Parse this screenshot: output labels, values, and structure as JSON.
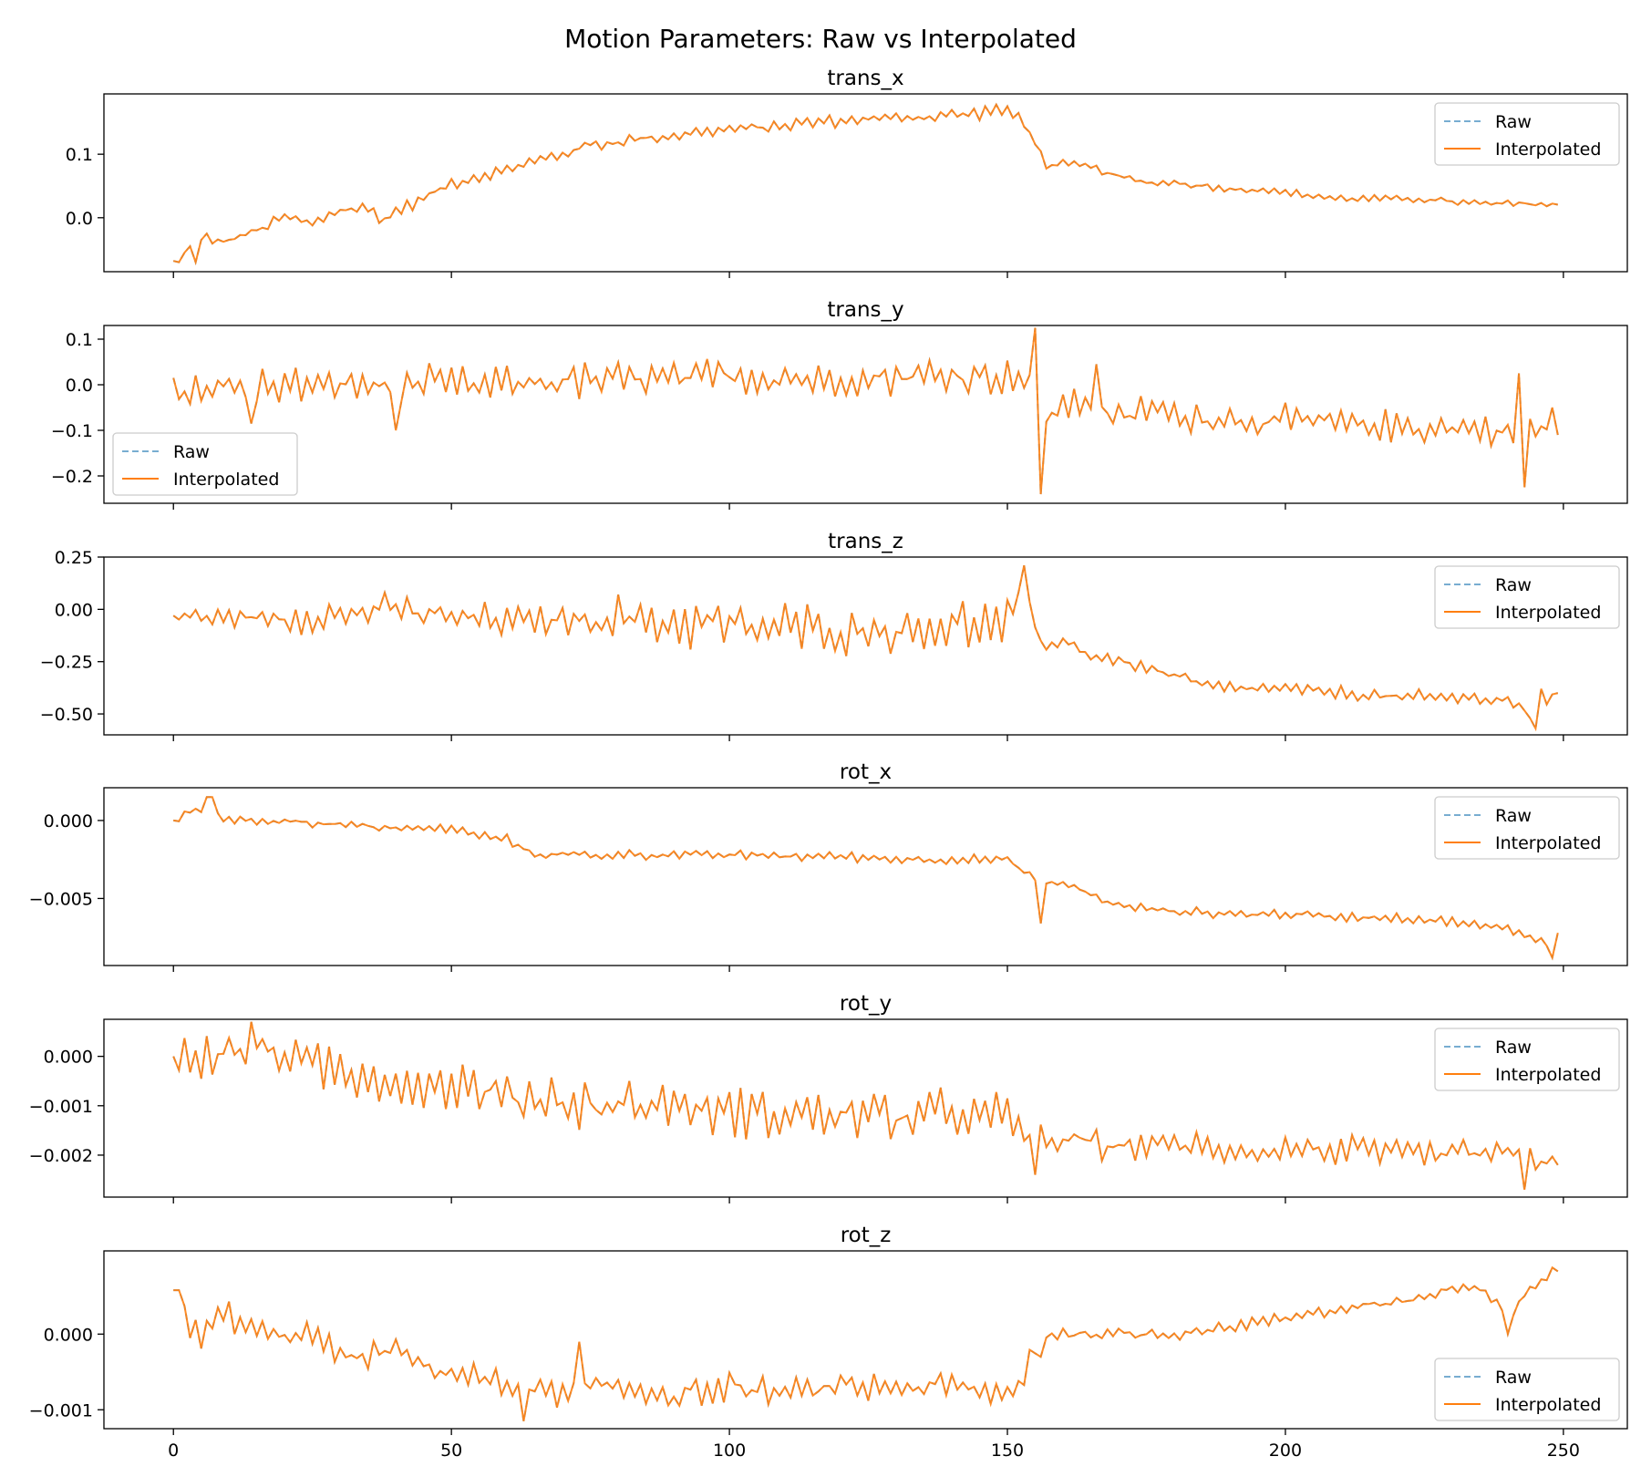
{
  "chart_data": {
    "type": "line",
    "suptitle": "Motion Parameters: Raw vs Interpolated",
    "colors": {
      "raw": "#1f77b4",
      "interpolated": "#ff7f0e"
    },
    "series_names": [
      "Raw",
      "Interpolated"
    ],
    "shared_x": {
      "xlim": [
        -12.5,
        261.5
      ],
      "ticks": [
        0,
        50,
        100,
        150,
        200,
        250
      ],
      "tick_labels": [
        "0",
        "50",
        "100",
        "150",
        "200",
        "250"
      ],
      "n_points": 250
    },
    "panels": [
      {
        "title": "trans_x",
        "ylim": [
          -0.085,
          0.195
        ],
        "yticks": [
          0.0,
          0.1
        ],
        "ytick_labels": [
          "0.0",
          "0.1"
        ],
        "legend_loc": "upper-right",
        "knots": [
          [
            0,
            -0.068
          ],
          [
            5,
            -0.04
          ],
          [
            10,
            -0.035
          ],
          [
            15,
            -0.02
          ],
          [
            20,
            0.0
          ],
          [
            25,
            -0.01
          ],
          [
            30,
            0.012
          ],
          [
            35,
            0.015
          ],
          [
            38,
            -0.005
          ],
          [
            40,
            0.01
          ],
          [
            45,
            0.03
          ],
          [
            50,
            0.055
          ],
          [
            55,
            0.065
          ],
          [
            60,
            0.075
          ],
          [
            65,
            0.09
          ],
          [
            70,
            0.1
          ],
          [
            75,
            0.115
          ],
          [
            80,
            0.12
          ],
          [
            85,
            0.125
          ],
          [
            90,
            0.13
          ],
          [
            95,
            0.135
          ],
          [
            100,
            0.14
          ],
          [
            105,
            0.142
          ],
          [
            110,
            0.145
          ],
          [
            115,
            0.15
          ],
          [
            120,
            0.152
          ],
          [
            125,
            0.155
          ],
          [
            130,
            0.158
          ],
          [
            135,
            0.16
          ],
          [
            140,
            0.162
          ],
          [
            145,
            0.165
          ],
          [
            148,
            0.17
          ],
          [
            152,
            0.16
          ],
          [
            155,
            0.12
          ],
          [
            157,
            0.08
          ],
          [
            160,
            0.085
          ],
          [
            165,
            0.08
          ],
          [
            170,
            0.065
          ],
          [
            175,
            0.055
          ],
          [
            180,
            0.055
          ],
          [
            185,
            0.05
          ],
          [
            190,
            0.045
          ],
          [
            195,
            0.045
          ],
          [
            200,
            0.04
          ],
          [
            205,
            0.035
          ],
          [
            210,
            0.03
          ],
          [
            215,
            0.03
          ],
          [
            220,
            0.03
          ],
          [
            225,
            0.03
          ],
          [
            230,
            0.025
          ],
          [
            235,
            0.022
          ],
          [
            240,
            0.022
          ],
          [
            245,
            0.022
          ],
          [
            249,
            0.02
          ]
        ],
        "noise": [
          [
            0,
            155,
            0.012
          ],
          [
            155,
            250,
            0.007
          ]
        ],
        "spikes": [
          [
            0,
            -0.068
          ],
          [
            1,
            -0.07
          ],
          [
            2,
            -0.055
          ],
          [
            3,
            -0.045
          ],
          [
            4,
            -0.07
          ],
          [
            5,
            -0.035
          ],
          [
            6,
            -0.025
          ]
        ]
      },
      {
        "title": "trans_y",
        "ylim": [
          -0.26,
          0.13
        ],
        "yticks": [
          -0.2,
          -0.1,
          0.0,
          0.1
        ],
        "ytick_labels": [
          "−0.2",
          "−0.1",
          "0.0",
          "0.1"
        ],
        "legend_loc": "lower-left",
        "knots": [
          [
            0,
            -0.01
          ],
          [
            20,
            0.0
          ],
          [
            40,
            0.0
          ],
          [
            60,
            0.0
          ],
          [
            80,
            0.01
          ],
          [
            100,
            0.02
          ],
          [
            120,
            0.01
          ],
          [
            140,
            0.02
          ],
          [
            150,
            0.02
          ],
          [
            155,
            0.0
          ],
          [
            157,
            -0.07
          ],
          [
            160,
            -0.05
          ],
          [
            165,
            -0.03
          ],
          [
            170,
            -0.08
          ],
          [
            175,
            -0.05
          ],
          [
            180,
            -0.07
          ],
          [
            200,
            -0.08
          ],
          [
            220,
            -0.09
          ],
          [
            240,
            -0.1
          ],
          [
            249,
            -0.1
          ]
        ],
        "noise": [
          [
            0,
            155,
            0.048
          ],
          [
            155,
            250,
            0.042
          ]
        ],
        "spikes": [
          [
            0,
            0.015
          ],
          [
            14,
            -0.085
          ],
          [
            40,
            -0.1
          ],
          [
            155,
            0.125
          ],
          [
            156,
            -0.24
          ],
          [
            166,
            0.045
          ],
          [
            242,
            0.025
          ],
          [
            243,
            -0.225
          ],
          [
            248,
            -0.05
          ],
          [
            249,
            -0.11
          ]
        ]
      },
      {
        "title": "trans_z",
        "ylim": [
          -0.6,
          0.25
        ],
        "yticks": [
          -0.5,
          -0.25,
          0.0,
          0.25
        ],
        "ytick_labels": [
          "−0.50",
          "−0.25",
          "0.00",
          "0.25"
        ],
        "legend_loc": "upper-right",
        "knots": [
          [
            0,
            -0.03
          ],
          [
            10,
            -0.04
          ],
          [
            20,
            -0.04
          ],
          [
            30,
            -0.03
          ],
          [
            40,
            0.0
          ],
          [
            50,
            -0.04
          ],
          [
            60,
            -0.05
          ],
          [
            70,
            -0.05
          ],
          [
            80,
            -0.05
          ],
          [
            90,
            -0.06
          ],
          [
            100,
            -0.08
          ],
          [
            110,
            -0.09
          ],
          [
            120,
            -0.1
          ],
          [
            130,
            -0.1
          ],
          [
            140,
            -0.08
          ],
          [
            150,
            -0.08
          ],
          [
            152,
            0.05
          ],
          [
            154,
            0.0
          ],
          [
            156,
            -0.17
          ],
          [
            160,
            -0.15
          ],
          [
            165,
            -0.22
          ],
          [
            170,
            -0.25
          ],
          [
            175,
            -0.28
          ],
          [
            180,
            -0.32
          ],
          [
            185,
            -0.36
          ],
          [
            190,
            -0.38
          ],
          [
            200,
            -0.38
          ],
          [
            210,
            -0.4
          ],
          [
            220,
            -0.42
          ],
          [
            230,
            -0.42
          ],
          [
            240,
            -0.43
          ],
          [
            245,
            -0.5
          ],
          [
            249,
            -0.4
          ]
        ],
        "noise": [
          [
            0,
            20,
            0.05
          ],
          [
            20,
            80,
            0.09
          ],
          [
            80,
            152,
            0.14
          ],
          [
            152,
            250,
            0.04
          ]
        ],
        "spikes": [
          [
            0,
            -0.03
          ],
          [
            153,
            0.21
          ],
          [
            244,
            -0.52
          ],
          [
            245,
            -0.57
          ],
          [
            246,
            -0.38
          ],
          [
            249,
            -0.4
          ]
        ]
      },
      {
        "title": "rot_x",
        "ylim": [
          -0.0093,
          0.0021
        ],
        "yticks": [
          -0.005,
          0.0
        ],
        "ytick_labels": [
          "−0.005",
          "0.000"
        ],
        "legend_loc": "upper-right",
        "knots": [
          [
            0,
            0.0
          ],
          [
            5,
            0.0008
          ],
          [
            10,
            0.0
          ],
          [
            20,
            0.0
          ],
          [
            30,
            -0.0003
          ],
          [
            40,
            -0.0005
          ],
          [
            50,
            -0.0005
          ],
          [
            55,
            -0.001
          ],
          [
            60,
            -0.0012
          ],
          [
            65,
            -0.0022
          ],
          [
            80,
            -0.0022
          ],
          [
            100,
            -0.0022
          ],
          [
            110,
            -0.0023
          ],
          [
            120,
            -0.0023
          ],
          [
            130,
            -0.0025
          ],
          [
            140,
            -0.0025
          ],
          [
            150,
            -0.0025
          ],
          [
            153,
            -0.0032
          ],
          [
            156,
            -0.004
          ],
          [
            160,
            -0.004
          ],
          [
            170,
            -0.0055
          ],
          [
            180,
            -0.0058
          ],
          [
            190,
            -0.006
          ],
          [
            200,
            -0.006
          ],
          [
            210,
            -0.0062
          ],
          [
            220,
            -0.0062
          ],
          [
            230,
            -0.0065
          ],
          [
            240,
            -0.007
          ],
          [
            245,
            -0.0075
          ],
          [
            249,
            -0.0085
          ]
        ],
        "noise": [
          [
            0,
            250,
            0.00035
          ]
        ],
        "spikes": [
          [
            0,
            0.0
          ],
          [
            6,
            0.0015
          ],
          [
            7,
            0.0015
          ],
          [
            156,
            -0.0066
          ],
          [
            248,
            -0.0088
          ],
          [
            249,
            -0.0072
          ]
        ]
      },
      {
        "title": "rot_y",
        "ylim": [
          -0.00285,
          0.00075
        ],
        "yticks": [
          -0.002,
          -0.001,
          0.0
        ],
        "ytick_labels": [
          "−0.002",
          "−0.001",
          "0.000"
        ],
        "legend_loc": "upper-right",
        "knots": [
          [
            0,
            0.0
          ],
          [
            10,
            0.0
          ],
          [
            15,
            0.0002
          ],
          [
            20,
            0.0
          ],
          [
            30,
            -0.0003
          ],
          [
            40,
            -0.0005
          ],
          [
            50,
            -0.0006
          ],
          [
            60,
            -0.0008
          ],
          [
            70,
            -0.0009
          ],
          [
            80,
            -0.001
          ],
          [
            90,
            -0.001
          ],
          [
            100,
            -0.0011
          ],
          [
            110,
            -0.0012
          ],
          [
            120,
            -0.0012
          ],
          [
            130,
            -0.0012
          ],
          [
            140,
            -0.0012
          ],
          [
            150,
            -0.0012
          ],
          [
            152,
            -0.0015
          ],
          [
            155,
            -0.0017
          ],
          [
            160,
            -0.0017
          ],
          [
            170,
            -0.0018
          ],
          [
            180,
            -0.0018
          ],
          [
            190,
            -0.0019
          ],
          [
            200,
            -0.0019
          ],
          [
            210,
            -0.0019
          ],
          [
            220,
            -0.002
          ],
          [
            230,
            -0.002
          ],
          [
            240,
            -0.002
          ],
          [
            245,
            -0.0021
          ],
          [
            249,
            -0.0021
          ]
        ],
        "noise": [
          [
            0,
            150,
            0.0006
          ],
          [
            150,
            250,
            0.0004
          ]
        ],
        "spikes": [
          [
            0,
            0.0
          ],
          [
            14,
            0.0007
          ],
          [
            155,
            -0.0024
          ],
          [
            243,
            -0.0027
          ],
          [
            249,
            -0.0022
          ]
        ]
      },
      {
        "title": "rot_z",
        "ylim": [
          -0.00125,
          0.0011
        ],
        "yticks": [
          -0.001,
          0.0
        ],
        "ytick_labels": [
          "−0.001",
          "0.000"
        ],
        "legend_loc": "lower-right",
        "knots": [
          [
            0,
            0.00058
          ],
          [
            1,
            0.00058
          ],
          [
            3,
            0.0
          ],
          [
            6,
            0.0
          ],
          [
            8,
            0.00025
          ],
          [
            10,
            0.00025
          ],
          [
            15,
            0.0
          ],
          [
            20,
            0.0
          ],
          [
            25,
            0.0
          ],
          [
            30,
            -0.0003
          ],
          [
            35,
            -0.0003
          ],
          [
            40,
            -0.0002
          ],
          [
            45,
            -0.0004
          ],
          [
            50,
            -0.0005
          ],
          [
            55,
            -0.0006
          ],
          [
            60,
            -0.0007
          ],
          [
            70,
            -0.0008
          ],
          [
            80,
            -0.0007
          ],
          [
            90,
            -0.0008
          ],
          [
            100,
            -0.0007
          ],
          [
            110,
            -0.0008
          ],
          [
            120,
            -0.0007
          ],
          [
            130,
            -0.0007
          ],
          [
            140,
            -0.0007
          ],
          [
            150,
            -0.0008
          ],
          [
            152,
            -0.0007
          ],
          [
            154,
            -0.0003
          ],
          [
            157,
            0.0
          ],
          [
            160,
            0.0
          ],
          [
            170,
            0.0
          ],
          [
            180,
            0.0
          ],
          [
            190,
            0.0001
          ],
          [
            200,
            0.0002
          ],
          [
            205,
            0.0003
          ],
          [
            210,
            0.0003
          ],
          [
            215,
            0.0004
          ],
          [
            220,
            0.0004
          ],
          [
            225,
            0.0005
          ],
          [
            230,
            0.0006
          ],
          [
            235,
            0.0006
          ],
          [
            238,
            0.0004
          ],
          [
            240,
            0.0002
          ],
          [
            243,
            0.0005
          ],
          [
            246,
            0.0007
          ],
          [
            249,
            0.00085
          ]
        ],
        "noise": [
          [
            0,
            155,
            0.00022
          ],
          [
            155,
            250,
            0.0001
          ]
        ],
        "spikes": [
          [
            0,
            0.00058
          ],
          [
            1,
            0.00058
          ],
          [
            63,
            -0.00115
          ],
          [
            73,
            -0.0001
          ],
          [
            156,
            -0.0003
          ],
          [
            240,
            0.0
          ],
          [
            248,
            0.00088
          ],
          [
            249,
            0.00083
          ]
        ]
      }
    ]
  }
}
